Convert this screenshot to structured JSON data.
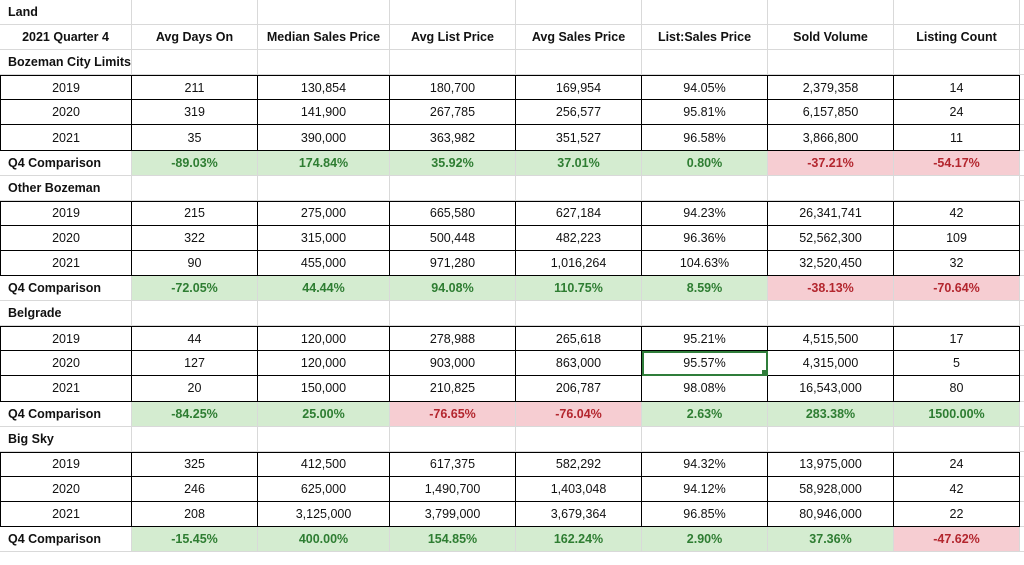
{
  "sheet_title": "Land",
  "header": [
    "2021 Quarter 4",
    "Avg Days On",
    "Median Sales Price",
    "Avg List Price",
    "Avg Sales Price",
    "List:Sales Price",
    "Sold Volume",
    "Listing Count"
  ],
  "positive_color": "#d4ecd0",
  "negative_color": "#f6cdd2",
  "sections": [
    {
      "name": "Bozeman City Limits",
      "rows": [
        [
          "2019",
          "211",
          "130,854",
          "180,700",
          "169,954",
          "94.05%",
          "2,379,358",
          "14"
        ],
        [
          "2020",
          "319",
          "141,900",
          "267,785",
          "256,577",
          "95.81%",
          "6,157,850",
          "24"
        ],
        [
          "2021",
          "35",
          "390,000",
          "363,982",
          "351,527",
          "96.58%",
          "3,866,800",
          "11"
        ]
      ],
      "comparison": {
        "label": "Q4 Comparison",
        "values": [
          "-89.03%",
          "174.84%",
          "35.92%",
          "37.01%",
          "0.80%",
          "-37.21%",
          "-54.17%"
        ],
        "signs": [
          "pos",
          "pos",
          "pos",
          "pos",
          "pos",
          "neg",
          "neg"
        ]
      }
    },
    {
      "name": "Other Bozeman",
      "rows": [
        [
          "2019",
          "215",
          "275,000",
          "665,580",
          "627,184",
          "94.23%",
          "26,341,741",
          "42"
        ],
        [
          "2020",
          "322",
          "315,000",
          "500,448",
          "482,223",
          "96.36%",
          "52,562,300",
          "109"
        ],
        [
          "2021",
          "90",
          "455,000",
          "971,280",
          "1,016,264",
          "104.63%",
          "32,520,450",
          "32"
        ]
      ],
      "comparison": {
        "label": "Q4 Comparison",
        "values": [
          "-72.05%",
          "44.44%",
          "94.08%",
          "110.75%",
          "8.59%",
          "-38.13%",
          "-70.64%"
        ],
        "signs": [
          "pos",
          "pos",
          "pos",
          "pos",
          "pos",
          "neg",
          "neg"
        ]
      }
    },
    {
      "name": "Belgrade",
      "rows": [
        [
          "2019",
          "44",
          "120,000",
          "278,988",
          "265,618",
          "95.21%",
          "4,515,500",
          "17"
        ],
        [
          "2020",
          "127",
          "120,000",
          "903,000",
          "863,000",
          "95.57%",
          "4,315,000",
          "5"
        ],
        [
          "2021",
          "20",
          "150,000",
          "210,825",
          "206,787",
          "98.08%",
          "16,543,000",
          "80"
        ]
      ],
      "comparison": {
        "label": "Q4 Comparison",
        "values": [
          "-84.25%",
          "25.00%",
          "-76.65%",
          "-76.04%",
          "2.63%",
          "283.38%",
          "1500.00%"
        ],
        "signs": [
          "pos",
          "pos",
          "neg",
          "neg",
          "pos",
          "pos",
          "pos"
        ]
      }
    },
    {
      "name": "Big Sky",
      "rows": [
        [
          "2019",
          "325",
          "412,500",
          "617,375",
          "582,292",
          "94.32%",
          "13,975,000",
          "24"
        ],
        [
          "2020",
          "246",
          "625,000",
          "1,490,700",
          "1,403,048",
          "94.12%",
          "58,928,000",
          "42"
        ],
        [
          "2021",
          "208",
          "3,125,000",
          "3,799,000",
          "3,679,364",
          "96.85%",
          "80,946,000",
          "22"
        ]
      ],
      "comparison": {
        "label": "Q4 Comparison",
        "values": [
          "-15.45%",
          "400.00%",
          "154.85%",
          "162.24%",
          "2.90%",
          "37.36%",
          "-47.62%"
        ],
        "signs": [
          "pos",
          "pos",
          "pos",
          "pos",
          "pos",
          "pos",
          "neg"
        ]
      }
    }
  ]
}
